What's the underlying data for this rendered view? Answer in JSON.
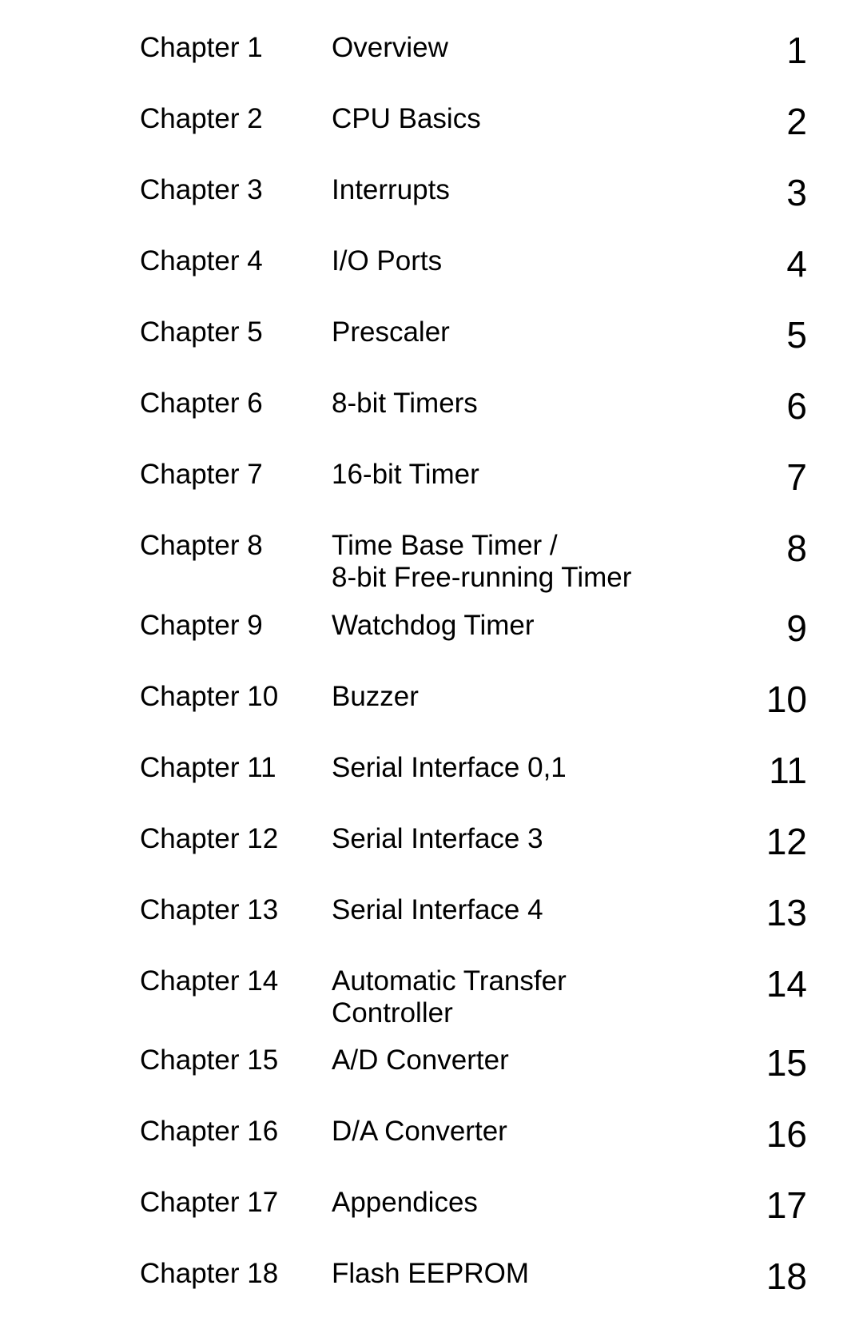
{
  "toc": {
    "entries": [
      {
        "label": "Chapter 1",
        "title": "Overview",
        "number": "1"
      },
      {
        "label": "Chapter 2",
        "title": "CPU Basics",
        "number": "2"
      },
      {
        "label": "Chapter 3",
        "title": "Interrupts",
        "number": "3"
      },
      {
        "label": "Chapter 4",
        "title": "I/O Ports",
        "number": "4"
      },
      {
        "label": "Chapter 5",
        "title": "Prescaler",
        "number": "5"
      },
      {
        "label": "Chapter 6",
        "title": "8-bit Timers",
        "number": "6"
      },
      {
        "label": "Chapter 7",
        "title": "16-bit Timer",
        "number": "7"
      },
      {
        "label": "Chapter 8",
        "title": "Time Base Timer /\n8-bit Free-running Timer",
        "number": "8"
      },
      {
        "label": "Chapter 9",
        "title": "Watchdog Timer",
        "number": "9"
      },
      {
        "label": "Chapter 10",
        "title": "Buzzer",
        "number": "10"
      },
      {
        "label": "Chapter 11",
        "title": "Serial Interface 0,1",
        "number": "11"
      },
      {
        "label": "Chapter 12",
        "title": "Serial Interface 3",
        "number": "12"
      },
      {
        "label": "Chapter 13",
        "title": "Serial Interface 4",
        "number": "13"
      },
      {
        "label": "Chapter 14",
        "title": "Automatic Transfer\nController",
        "number": "14"
      },
      {
        "label": "Chapter 15",
        "title": "A/D Converter",
        "number": "15"
      },
      {
        "label": "Chapter 16",
        "title": "D/A Converter",
        "number": "16"
      },
      {
        "label": "Chapter 17",
        "title": "Appendices",
        "number": "17"
      },
      {
        "label": "Chapter 18",
        "title": "Flash EEPROM",
        "number": "18"
      }
    ],
    "tight_indices": [
      7,
      13
    ],
    "text_color": "#000000",
    "background_color": "#ffffff",
    "label_fontsize": 35,
    "title_fontsize": 35,
    "number_fontsize": 46
  }
}
